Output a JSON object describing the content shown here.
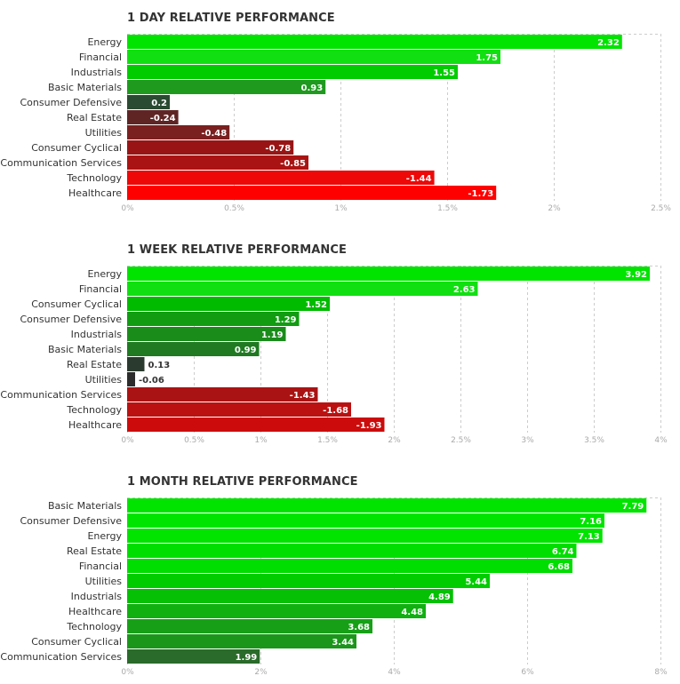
{
  "chart_data": [
    {
      "type": "bar",
      "title": "1 DAY RELATIVE PERFORMANCE",
      "orientation": "horizontal",
      "categories": [
        "Energy",
        "Financial",
        "Industrials",
        "Basic Materials",
        "Consumer Defensive",
        "Real Estate",
        "Utilities",
        "Consumer Cyclical",
        "Communication Services",
        "Technology",
        "Healthcare"
      ],
      "values": [
        2.32,
        1.75,
        1.55,
        0.93,
        0.2,
        -0.24,
        -0.48,
        -0.78,
        -0.85,
        -1.44,
        -1.73
      ],
      "value_labels": [
        "2.32",
        "1.75",
        "1.55",
        "0.93",
        "0.2",
        "-0.24",
        "-0.48",
        "-0.78",
        "-0.85",
        "-1.44",
        "-1.73"
      ],
      "bar_extent": "absolute value",
      "xlim": [
        0,
        2.5
      ],
      "xticks": [
        0,
        0.5,
        1,
        1.5,
        2,
        2.5
      ],
      "xtick_labels": [
        "0%",
        "0.5%",
        "1%",
        "1.5%",
        "2%",
        "2.5%"
      ],
      "grid": true,
      "colors": [
        "#00e400",
        "#12df12",
        "#00cc00",
        "#1f9a1f",
        "#2a4a32",
        "#5f2525",
        "#7a2020",
        "#991515",
        "#aa1313",
        "#ee0808",
        "#ff0000"
      ]
    },
    {
      "type": "bar",
      "title": "1 WEEK RELATIVE PERFORMANCE",
      "orientation": "horizontal",
      "categories": [
        "Energy",
        "Financial",
        "Consumer Cyclical",
        "Consumer Defensive",
        "Industrials",
        "Basic Materials",
        "Real Estate",
        "Utilities",
        "Communication Services",
        "Technology",
        "Healthcare"
      ],
      "values": [
        3.92,
        2.63,
        1.52,
        1.29,
        1.19,
        0.99,
        0.13,
        -0.06,
        -1.43,
        -1.68,
        -1.93
      ],
      "value_labels": [
        "3.92",
        "2.63",
        "1.52",
        "1.29",
        "1.19",
        "0.99",
        "0.13",
        "-0.06",
        "-1.43",
        "-1.68",
        "-1.93"
      ],
      "bar_extent": "absolute value",
      "xlim": [
        0,
        4
      ],
      "xticks": [
        0,
        0.5,
        1,
        1.5,
        2,
        2.5,
        3,
        3.5,
        4
      ],
      "xtick_labels": [
        "0%",
        "0.5%",
        "1%",
        "1.5%",
        "2%",
        "2.5%",
        "3%",
        "3.5%",
        "4%"
      ],
      "grid": true,
      "colors": [
        "#00e400",
        "#12df12",
        "#00bb00",
        "#119c11",
        "#1a8c1a",
        "#1f7a22",
        "#2a3a2e",
        "#2c2c2c",
        "#aa1313",
        "#bb1111",
        "#cc0c0c"
      ]
    },
    {
      "type": "bar",
      "title": "1 MONTH RELATIVE PERFORMANCE",
      "orientation": "horizontal",
      "categories": [
        "Basic Materials",
        "Consumer Defensive",
        "Energy",
        "Real Estate",
        "Financial",
        "Utilities",
        "Industrials",
        "Healthcare",
        "Technology",
        "Consumer Cyclical",
        "Communication Services"
      ],
      "values": [
        7.79,
        7.16,
        7.13,
        6.74,
        6.68,
        5.44,
        4.89,
        4.48,
        3.68,
        3.44,
        1.99
      ],
      "value_labels": [
        "7.79",
        "7.16",
        "7.13",
        "6.74",
        "6.68",
        "5.44",
        "4.89",
        "4.48",
        "3.68",
        "3.44",
        "1.99"
      ],
      "bar_extent": "absolute value",
      "xlim": [
        0,
        8
      ],
      "xticks": [
        0,
        2,
        4,
        6,
        8
      ],
      "xtick_labels": [
        "0%",
        "2%",
        "4%",
        "6%",
        "8%"
      ],
      "grid": true,
      "colors": [
        "#00e400",
        "#00e400",
        "#00e400",
        "#00dd00",
        "#00dd00",
        "#00cc00",
        "#05c005",
        "#10b010",
        "#17a017",
        "#1b961b",
        "#2a6a2a"
      ]
    }
  ]
}
